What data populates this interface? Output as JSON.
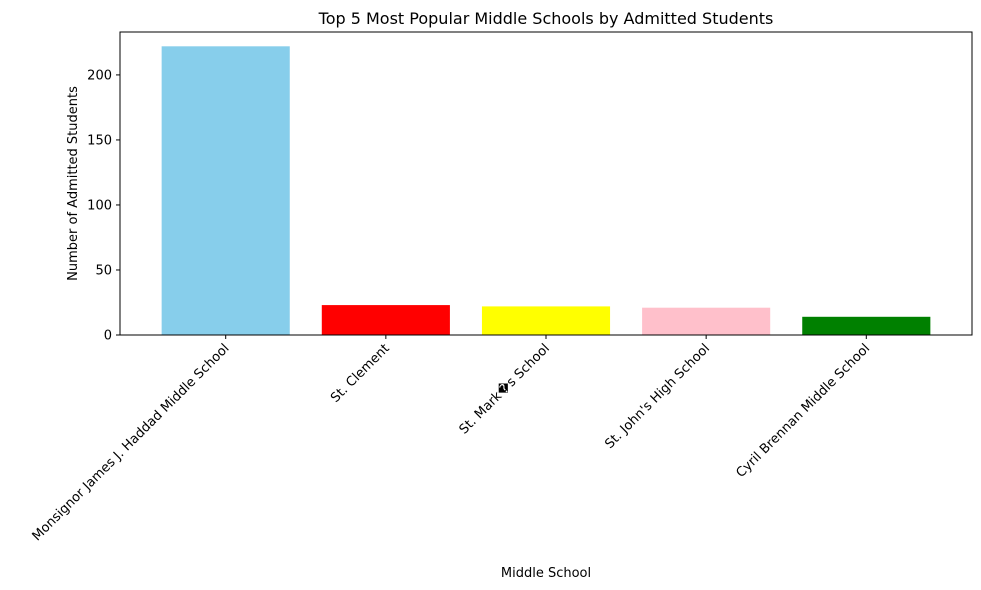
{
  "chart_data": {
    "type": "bar",
    "title": "Top 5 Most Popular Middle Schools by Admitted Students",
    "xlabel": "Middle School",
    "ylabel": "Number of Admitted Students",
    "categories": [
      "Monsignor James J. Haddad Middle School",
      "St. Clement",
      "St. Mark�s School",
      "St. John's High School",
      "Cyril Brennan Middle School"
    ],
    "values": [
      222,
      23,
      22,
      21,
      14
    ],
    "colors": [
      "#87ceeb",
      "#ff0000",
      "#ffff00",
      "#ffc0cb",
      "#008000"
    ],
    "ylim": [
      0,
      233
    ],
    "yticks": [
      0,
      50,
      100,
      150,
      200
    ],
    "grid": false,
    "legend": false
  }
}
